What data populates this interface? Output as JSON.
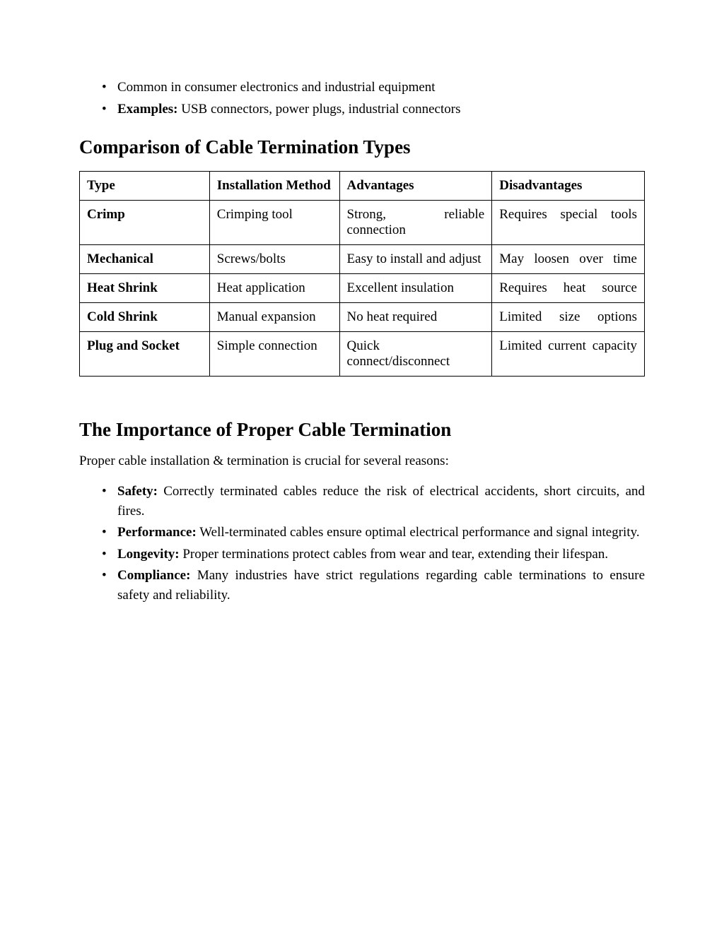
{
  "topBullets": [
    {
      "text": "Common in consumer electronics and industrial equipment"
    },
    {
      "label": "Examples:",
      "text": " USB connectors, power plugs, industrial connectors"
    }
  ],
  "heading1": "Comparison of Cable Termination Types",
  "table": {
    "headers": {
      "type": "Type",
      "install": "Installation Method",
      "adv": "Advantages",
      "dis": "Disadvantages"
    },
    "rows": [
      {
        "type": "Crimp",
        "install": "Crimping tool",
        "adv": "Strong, reliable connection",
        "dis": "Requires special tools",
        "advJustify": true,
        "disJustify": true
      },
      {
        "type": "Mechanical",
        "install": "Screws/bolts",
        "adv": "Easy to install and adjust",
        "dis": "May loosen over time",
        "advJustify": false,
        "disJustify": true
      },
      {
        "type": "Heat Shrink",
        "install": "Heat application",
        "adv": "Excellent insulation",
        "dis": "Requires heat source",
        "advJustify": false,
        "disJustify": true
      },
      {
        "type": "Cold Shrink",
        "install": "Manual expansion",
        "adv": "No heat required",
        "dis": "Limited size options",
        "advJustify": false,
        "disJustify": true
      },
      {
        "type": "Plug and Socket",
        "install": "Simple connection",
        "adv": "Quick connect/disconnect",
        "dis": "Limited current capacity",
        "advJustify": false,
        "disJustify": true
      }
    ]
  },
  "heading2": "The Importance of Proper Cable Termination",
  "intro": "Proper cable installation & termination is crucial for several reasons:",
  "reasons": [
    {
      "label": "Safety:",
      "text": " Correctly terminated cables reduce the risk of electrical accidents, short circuits, and fires."
    },
    {
      "label": "Performance:",
      "text": " Well-terminated cables ensure optimal electrical performance and signal integrity."
    },
    {
      "label": "Longevity:",
      "text": " Proper terminations protect cables from wear and tear, extending their lifespan."
    },
    {
      "label": "Compliance:",
      "text": " Many industries have strict regulations regarding cable terminations to ensure safety and reliability."
    }
  ]
}
